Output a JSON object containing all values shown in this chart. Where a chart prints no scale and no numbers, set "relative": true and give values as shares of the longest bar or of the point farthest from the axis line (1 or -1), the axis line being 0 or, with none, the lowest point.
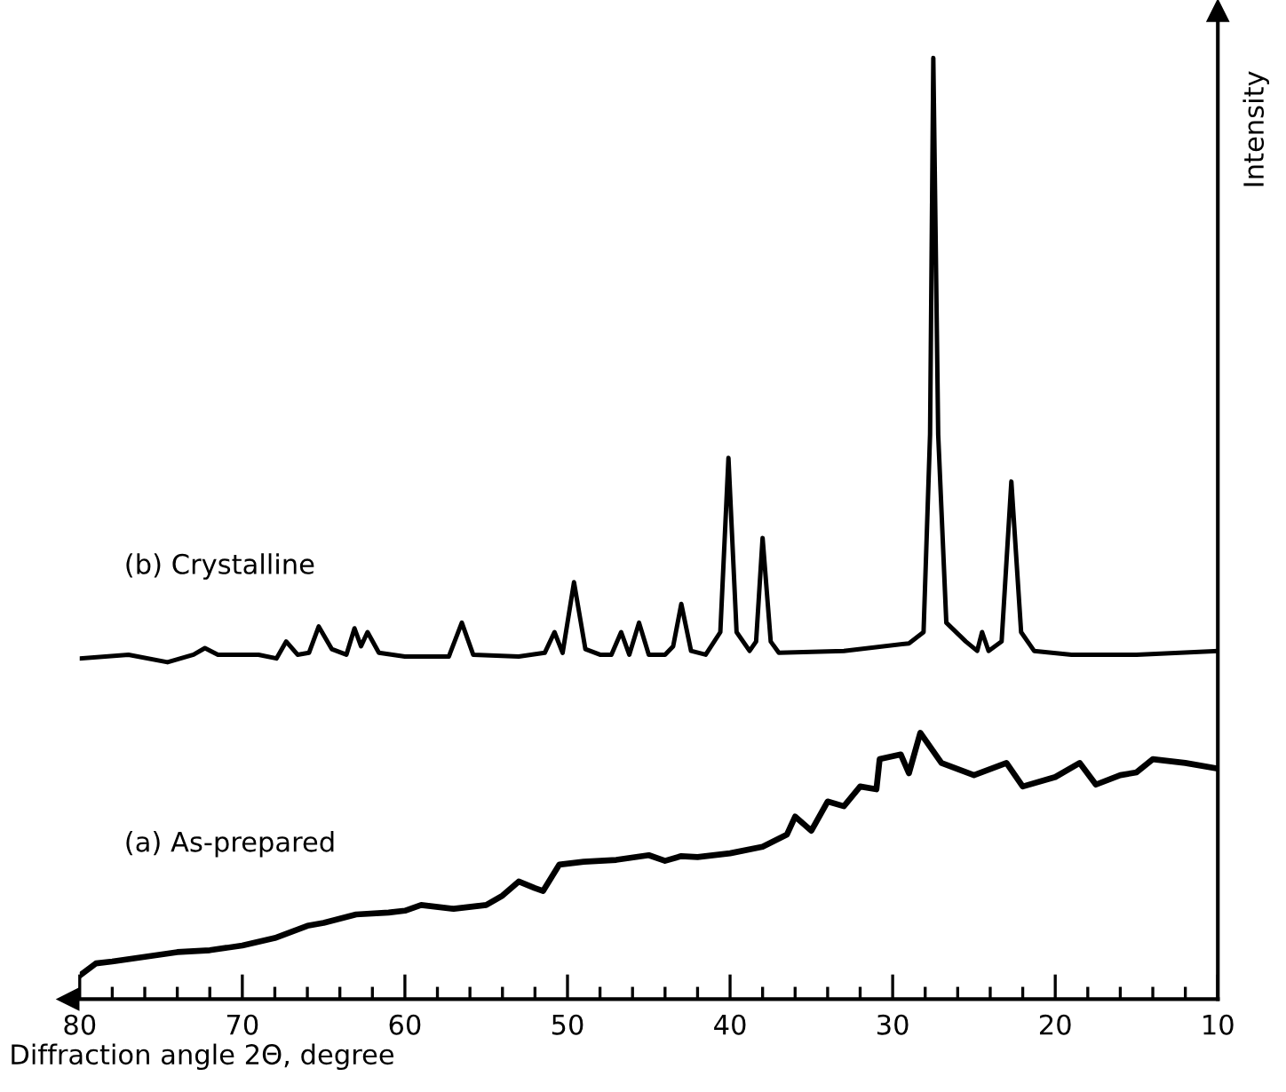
{
  "chart_data": {
    "type": "line",
    "relative": true,
    "xlabel": "Diffraction angle 2Θ, degree",
    "ylabel": "Intensity",
    "tick_labels": "x",
    "grid": false,
    "legend": false,
    "marker": "none",
    "line_style": "solid",
    "xlim": [
      80,
      10
    ],
    "xticks": [
      80,
      {
        "value": 78,
        "label": null
      },
      {
        "value": 76,
        "label": null
      },
      {
        "value": 74,
        "label": null
      },
      {
        "value": 72,
        "label": null
      },
      70,
      {
        "value": 68,
        "label": null
      },
      {
        "value": 66,
        "label": null
      },
      {
        "value": 64,
        "label": null
      },
      {
        "value": 62,
        "label": null
      },
      60,
      {
        "value": 58,
        "label": null
      },
      {
        "value": 56,
        "label": null
      },
      {
        "value": 54,
        "label": null
      },
      {
        "value": 52,
        "label": null
      },
      50,
      {
        "value": 48,
        "label": null
      },
      {
        "value": 46,
        "label": null
      },
      {
        "value": 44,
        "label": null
      },
      {
        "value": 42,
        "label": null
      },
      40,
      {
        "value": 38,
        "label": null
      },
      {
        "value": 36,
        "label": null
      },
      {
        "value": 34,
        "label": null
      },
      {
        "value": 32,
        "label": null
      },
      30,
      {
        "value": 28,
        "label": null
      },
      {
        "value": 26,
        "label": null
      },
      {
        "value": 24,
        "label": null
      },
      {
        "value": 22,
        "label": null
      },
      20,
      {
        "value": 18,
        "label": null
      },
      {
        "value": 16,
        "label": null
      },
      {
        "value": 14,
        "label": null
      },
      {
        "value": 12,
        "label": null
      },
      10
    ],
    "series": [
      {
        "name": "(b) Crystalline",
        "color": "#000000",
        "x": [
          80,
          77,
          74.6,
          73,
          72.3,
          71.5,
          69,
          67.9,
          67.3,
          66.6,
          65.9,
          65.3,
          64.5,
          63.6,
          63.1,
          62.7,
          62.3,
          61.6,
          60,
          57.3,
          56.5,
          55.8,
          53,
          51.4,
          50.8,
          50.3,
          49.6,
          48.9,
          48,
          47.3,
          46.7,
          46.2,
          45.6,
          45,
          44,
          43.5,
          43,
          42.4,
          41.5,
          40.6,
          40.1,
          39.6,
          38.8,
          38.4,
          38,
          37.5,
          37,
          33,
          29,
          28.1,
          27.7,
          27.5,
          27.2,
          26.7,
          25.5,
          24.8,
          24.5,
          24.1,
          23.3,
          22.7,
          22.1,
          21.3,
          19,
          15,
          10
        ],
        "values": [
          0.362,
          0.366,
          0.358,
          0.366,
          0.373,
          0.366,
          0.366,
          0.362,
          0.38,
          0.366,
          0.368,
          0.396,
          0.372,
          0.366,
          0.394,
          0.375,
          0.39,
          0.368,
          0.364,
          0.364,
          0.4,
          0.366,
          0.364,
          0.368,
          0.39,
          0.368,
          0.443,
          0.372,
          0.366,
          0.366,
          0.39,
          0.366,
          0.4,
          0.366,
          0.366,
          0.375,
          0.42,
          0.37,
          0.366,
          0.39,
          0.575,
          0.39,
          0.37,
          0.38,
          0.49,
          0.38,
          0.368,
          0.37,
          0.378,
          0.39,
          0.6,
          1.0,
          0.6,
          0.4,
          0.38,
          0.37,
          0.39,
          0.37,
          0.38,
          0.55,
          0.39,
          0.37,
          0.366,
          0.366,
          0.37
        ]
      },
      {
        "name": "(a) As-prepared",
        "color": "#000000",
        "x": [
          80,
          79,
          78,
          76,
          74,
          72,
          70,
          68,
          66,
          65,
          63,
          61,
          60,
          59,
          57,
          55,
          54,
          53,
          52,
          51.5,
          50.5,
          49,
          47,
          45,
          44,
          43,
          42,
          40,
          38,
          36.5,
          36,
          35,
          34,
          33,
          32,
          31,
          30.8,
          29.5,
          29,
          28.3,
          27,
          25,
          23,
          22,
          20,
          18.5,
          17.5,
          16,
          15,
          14,
          12,
          10
        ],
        "values": [
          0.025,
          0.038,
          0.04,
          0.045,
          0.05,
          0.052,
          0.057,
          0.065,
          0.078,
          0.081,
          0.09,
          0.092,
          0.094,
          0.1,
          0.096,
          0.1,
          0.11,
          0.125,
          0.118,
          0.115,
          0.143,
          0.146,
          0.148,
          0.153,
          0.147,
          0.152,
          0.151,
          0.155,
          0.162,
          0.175,
          0.194,
          0.179,
          0.21,
          0.205,
          0.226,
          0.223,
          0.255,
          0.26,
          0.24,
          0.283,
          0.251,
          0.238,
          0.251,
          0.226,
          0.236,
          0.251,
          0.228,
          0.238,
          0.241,
          0.255,
          0.251,
          0.245
        ]
      }
    ]
  }
}
